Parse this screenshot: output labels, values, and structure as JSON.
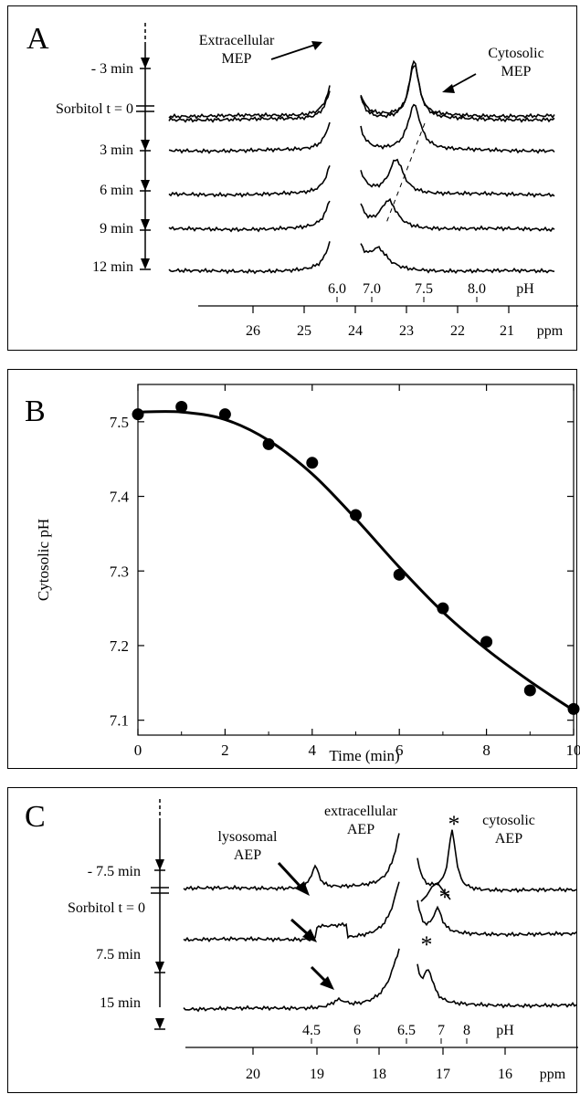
{
  "panels": {
    "a": {
      "letter": "A",
      "annotations": {
        "extracellular": [
          "Extracellular",
          "MEP"
        ],
        "cytosolic": [
          "Cytosolic",
          "MEP"
        ]
      },
      "time_labels": [
        "- 3 min",
        "Sorbitol t = 0",
        "3 min",
        "6 min",
        "9 min",
        "12 min"
      ],
      "ph_labels": [
        "6.0",
        "7.0",
        "7.5",
        "8.0",
        "pH"
      ],
      "ppm_ticks": [
        "26",
        "25",
        "24",
        "23",
        "22",
        "21"
      ],
      "ppm_unit": "ppm"
    },
    "b": {
      "letter": "B",
      "y_ticks": [
        "7.5",
        "7.4",
        "7.3",
        "7.2",
        "7.1"
      ],
      "x_ticks": [
        "0",
        "2",
        "4",
        "6",
        "8",
        "10"
      ]
    },
    "c": {
      "letter": "C",
      "annotations": {
        "lysosomal": [
          "lysosomal",
          "AEP"
        ],
        "extracellular": [
          "extracellular",
          "AEP"
        ],
        "cytosolic": [
          "cytosolic",
          "AEP"
        ],
        "star": "*"
      },
      "time_labels": [
        "- 7.5 min",
        "Sorbitol t = 0",
        "7.5 min",
        "15 min"
      ],
      "ph_labels": [
        "4.5",
        "6",
        "6.5",
        "7",
        "8",
        "pH"
      ],
      "ppm_ticks": [
        "20",
        "19",
        "18",
        "17",
        "16"
      ],
      "ppm_unit": "ppm"
    }
  },
  "chart_data": [
    {
      "type": "line",
      "panel": "A",
      "description_of_content": "Stacked 31P NMR spectra of MEP over time after sorbitol",
      "series_labels": [
        "- 3 min",
        "Sorbitol t = 0",
        "3 min",
        "6 min",
        "9 min",
        "12 min"
      ],
      "cytosolic_peak_ppm": [
        22.85,
        22.85,
        22.85,
        23.2,
        23.35,
        23.55
      ],
      "x_ticks_ppm": [
        26,
        25,
        24,
        23,
        22,
        21
      ],
      "ph_scale": [
        6.0,
        7.0,
        7.5,
        8.0
      ]
    },
    {
      "type": "scatter",
      "panel": "B",
      "xlabel": "Time (min)",
      "ylabel": "Cytosolic pH",
      "xlim": [
        0,
        10
      ],
      "ylim": [
        7.08,
        7.55
      ],
      "x": [
        0,
        1,
        2,
        3,
        4,
        5,
        6,
        7,
        8,
        9,
        10
      ],
      "y": [
        7.51,
        7.52,
        7.51,
        7.47,
        7.445,
        7.375,
        7.295,
        7.25,
        7.205,
        7.14,
        7.115
      ],
      "fit_x": [
        0,
        1,
        2,
        3,
        4,
        5,
        6,
        7,
        8,
        9,
        10
      ],
      "fit_y": [
        7.513,
        7.513,
        7.503,
        7.475,
        7.43,
        7.37,
        7.305,
        7.245,
        7.195,
        7.152,
        7.113
      ]
    },
    {
      "type": "line",
      "panel": "C",
      "description_of_content": "Stacked 31P NMR spectra of AEP over time after sorbitol",
      "series_labels": [
        "- 7.5 min",
        "Sorbitol t = 0",
        "7.5 min",
        "15 min"
      ],
      "x_ticks_ppm": [
        20,
        19,
        18,
        17,
        16
      ],
      "ph_scale": [
        4.5,
        6,
        6.5,
        7,
        8
      ]
    }
  ]
}
